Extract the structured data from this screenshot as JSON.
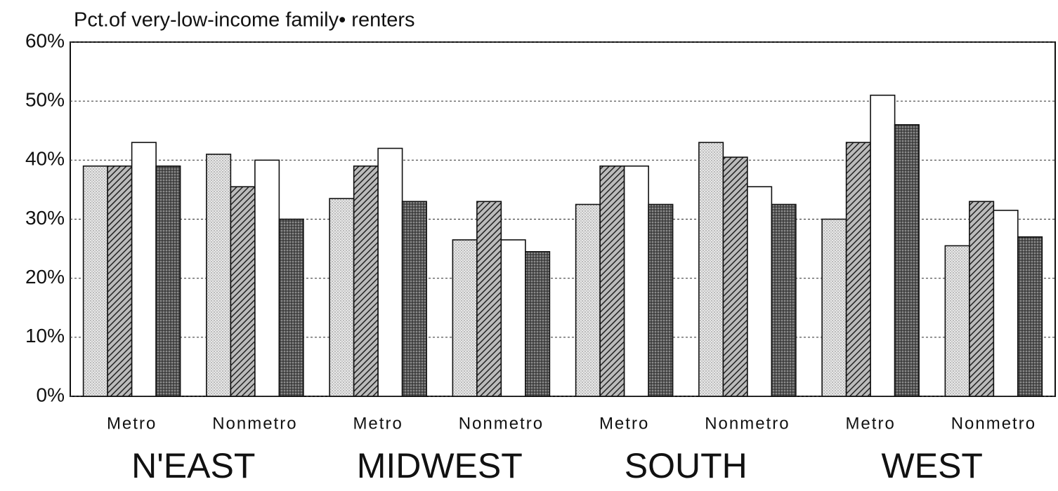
{
  "chart_data": {
    "type": "bar",
    "title": "Pct.of very-low-income family• renters",
    "categories": [
      "Metro",
      "Nonmetro",
      "Metro",
      "Nonmetro",
      "Metro",
      "Nonmetro",
      "Metro",
      "Nonmetro"
    ],
    "group_labels": [
      "N'EAST",
      "MIDWEST",
      "SOUTH",
      "WEST"
    ],
    "series": [
      {
        "pattern": "dots-light",
        "values": [
          39,
          41,
          33.5,
          26.5,
          32.5,
          43,
          30,
          25.5
        ]
      },
      {
        "pattern": "hatch",
        "values": [
          39,
          35.5,
          39,
          33,
          39,
          40.5,
          43,
          33
        ]
      },
      {
        "pattern": "none",
        "values": [
          43,
          40,
          42,
          26.5,
          39,
          35.5,
          51,
          31.5
        ]
      },
      {
        "pattern": "dots-dark",
        "values": [
          39,
          30,
          33,
          24.5,
          32.5,
          32.5,
          46,
          27
        ]
      }
    ],
    "ylim": [
      0,
      60
    ],
    "yticks": [
      {
        "value": 0,
        "label": "0%"
      },
      {
        "value": 10,
        "label": "10%"
      },
      {
        "value": 20,
        "label": "20%"
      },
      {
        "value": 30,
        "label": "30%"
      },
      {
        "value": 40,
        "label": "40%"
      },
      {
        "value": 50,
        "label": "50%"
      },
      {
        "value": 60,
        "label": "60%"
      }
    ],
    "grid": true
  }
}
